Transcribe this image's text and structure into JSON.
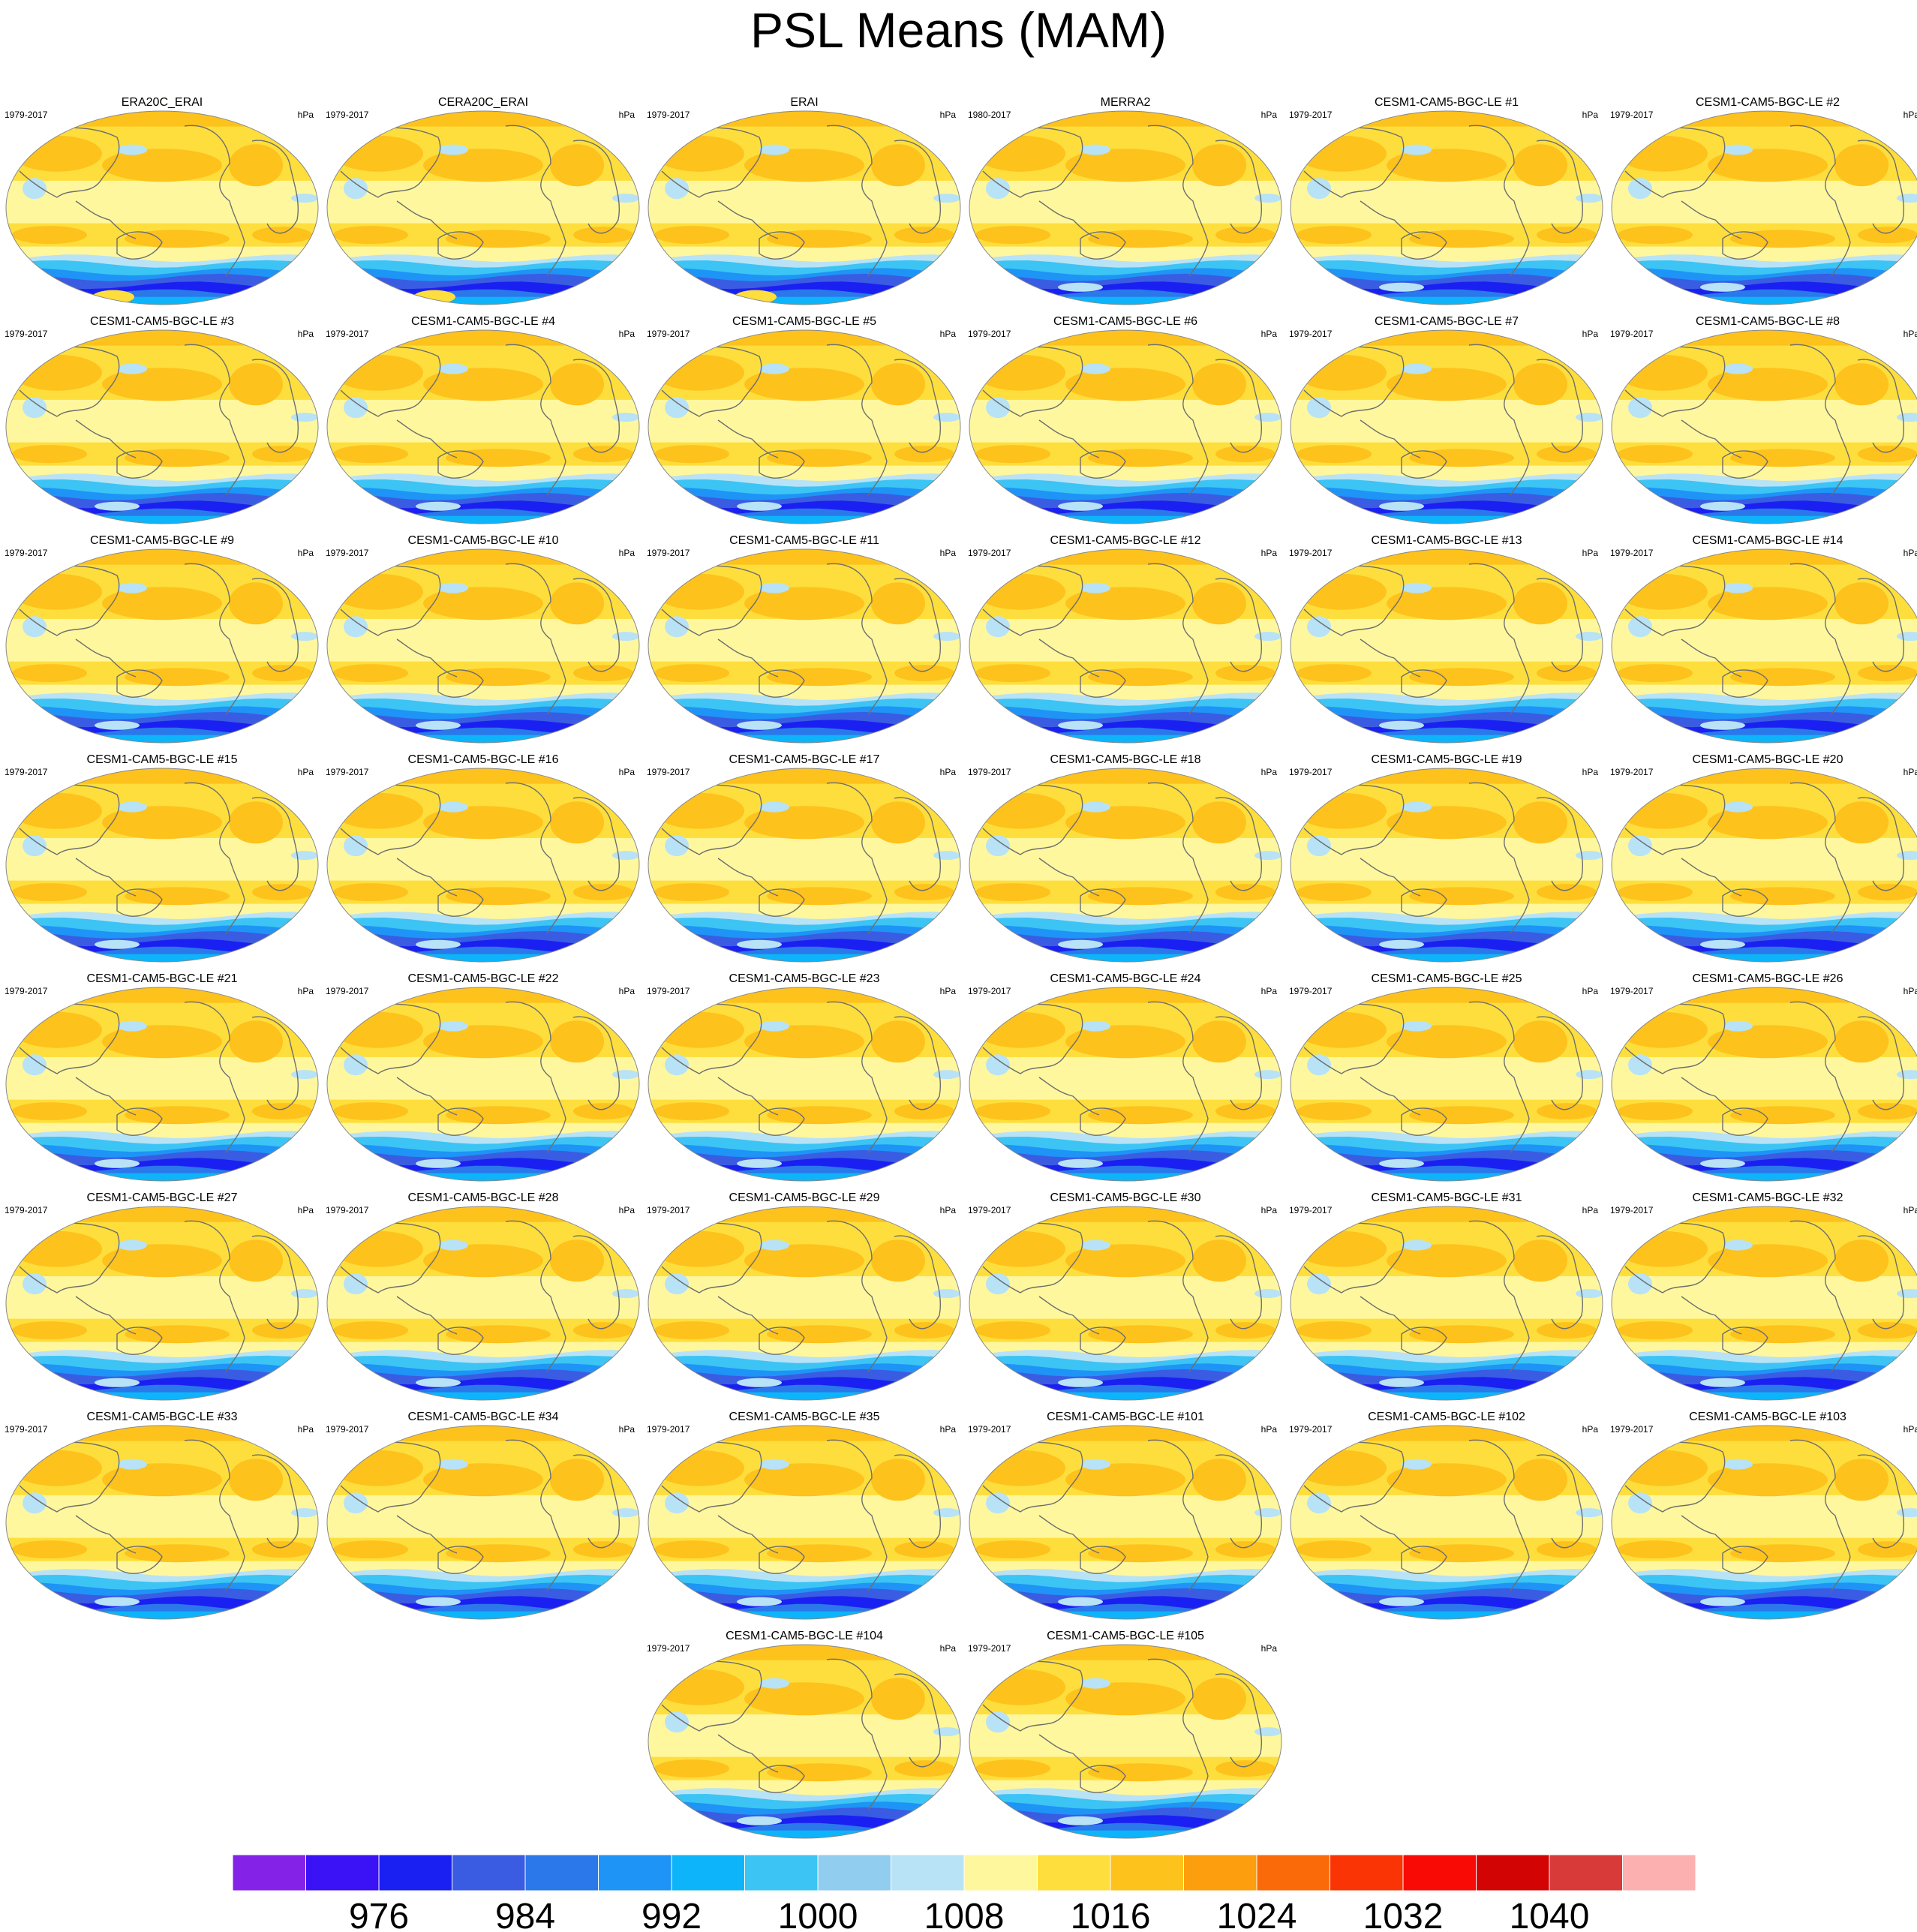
{
  "title": "PSL Means (MAM)",
  "units": "hPa",
  "colors": {
    "coast": "#6e6e6e",
    "levels": [
      "#8522e8",
      "#3a12f5",
      "#1a20f2",
      "#3a5ce2",
      "#2a78ea",
      "#1e94f6",
      "#0db4fa",
      "#3cc4f4",
      "#90cdee",
      "#b8e2f6",
      "#fef79e",
      "#fede3c",
      "#fec21c",
      "#fd9e0e",
      "#fa6a08",
      "#fa3404",
      "#fa0a04",
      "#d20404",
      "#d83a3a",
      "#fcb0b0"
    ]
  },
  "chart_data": {
    "type": "heatmap",
    "variable": "PSL",
    "season": "MAM",
    "colorbar_ticks": [
      "976",
      "984",
      "992",
      "1000",
      "1008",
      "1016",
      "1024",
      "1032",
      "1040"
    ],
    "panels": [
      {
        "title": "ERA20C_ERAI",
        "years": "1979-2017"
      },
      {
        "title": "CERA20C_ERAI",
        "years": "1979-2017"
      },
      {
        "title": "ERAI",
        "years": "1979-2017"
      },
      {
        "title": "MERRA2",
        "years": "1980-2017"
      },
      {
        "title": "CESM1-CAM5-BGC-LE #1",
        "years": "1979-2017"
      },
      {
        "title": "CESM1-CAM5-BGC-LE #2",
        "years": "1979-2017"
      },
      {
        "title": "CESM1-CAM5-BGC-LE #3",
        "years": "1979-2017"
      },
      {
        "title": "CESM1-CAM5-BGC-LE #4",
        "years": "1979-2017"
      },
      {
        "title": "CESM1-CAM5-BGC-LE #5",
        "years": "1979-2017"
      },
      {
        "title": "CESM1-CAM5-BGC-LE #6",
        "years": "1979-2017"
      },
      {
        "title": "CESM1-CAM5-BGC-LE #7",
        "years": "1979-2017"
      },
      {
        "title": "CESM1-CAM5-BGC-LE #8",
        "years": "1979-2017"
      },
      {
        "title": "CESM1-CAM5-BGC-LE #9",
        "years": "1979-2017"
      },
      {
        "title": "CESM1-CAM5-BGC-LE #10",
        "years": "1979-2017"
      },
      {
        "title": "CESM1-CAM5-BGC-LE #11",
        "years": "1979-2017"
      },
      {
        "title": "CESM1-CAM5-BGC-LE #12",
        "years": "1979-2017"
      },
      {
        "title": "CESM1-CAM5-BGC-LE #13",
        "years": "1979-2017"
      },
      {
        "title": "CESM1-CAM5-BGC-LE #14",
        "years": "1979-2017"
      },
      {
        "title": "CESM1-CAM5-BGC-LE #15",
        "years": "1979-2017"
      },
      {
        "title": "CESM1-CAM5-BGC-LE #16",
        "years": "1979-2017"
      },
      {
        "title": "CESM1-CAM5-BGC-LE #17",
        "years": "1979-2017"
      },
      {
        "title": "CESM1-CAM5-BGC-LE #18",
        "years": "1979-2017"
      },
      {
        "title": "CESM1-CAM5-BGC-LE #19",
        "years": "1979-2017"
      },
      {
        "title": "CESM1-CAM5-BGC-LE #20",
        "years": "1979-2017"
      },
      {
        "title": "CESM1-CAM5-BGC-LE #21",
        "years": "1979-2017"
      },
      {
        "title": "CESM1-CAM5-BGC-LE #22",
        "years": "1979-2017"
      },
      {
        "title": "CESM1-CAM5-BGC-LE #23",
        "years": "1979-2017"
      },
      {
        "title": "CESM1-CAM5-BGC-LE #24",
        "years": "1979-2017"
      },
      {
        "title": "CESM1-CAM5-BGC-LE #25",
        "years": "1979-2017"
      },
      {
        "title": "CESM1-CAM5-BGC-LE #26",
        "years": "1979-2017"
      },
      {
        "title": "CESM1-CAM5-BGC-LE #27",
        "years": "1979-2017"
      },
      {
        "title": "CESM1-CAM5-BGC-LE #28",
        "years": "1979-2017"
      },
      {
        "title": "CESM1-CAM5-BGC-LE #29",
        "years": "1979-2017"
      },
      {
        "title": "CESM1-CAM5-BGC-LE #30",
        "years": "1979-2017"
      },
      {
        "title": "CESM1-CAM5-BGC-LE #31",
        "years": "1979-2017"
      },
      {
        "title": "CESM1-CAM5-BGC-LE #32",
        "years": "1979-2017"
      },
      {
        "title": "CESM1-CAM5-BGC-LE #33",
        "years": "1979-2017"
      },
      {
        "title": "CESM1-CAM5-BGC-LE #34",
        "years": "1979-2017"
      },
      {
        "title": "CESM1-CAM5-BGC-LE #35",
        "years": "1979-2017"
      },
      {
        "title": "CESM1-CAM5-BGC-LE #101",
        "years": "1979-2017"
      },
      {
        "title": "CESM1-CAM5-BGC-LE #102",
        "years": "1979-2017"
      },
      {
        "title": "CESM1-CAM5-BGC-LE #103",
        "years": "1979-2017"
      },
      {
        "title": "CESM1-CAM5-BGC-LE #104",
        "years": "1979-2017"
      },
      {
        "title": "CESM1-CAM5-BGC-LE #105",
        "years": "1979-2017"
      }
    ]
  }
}
